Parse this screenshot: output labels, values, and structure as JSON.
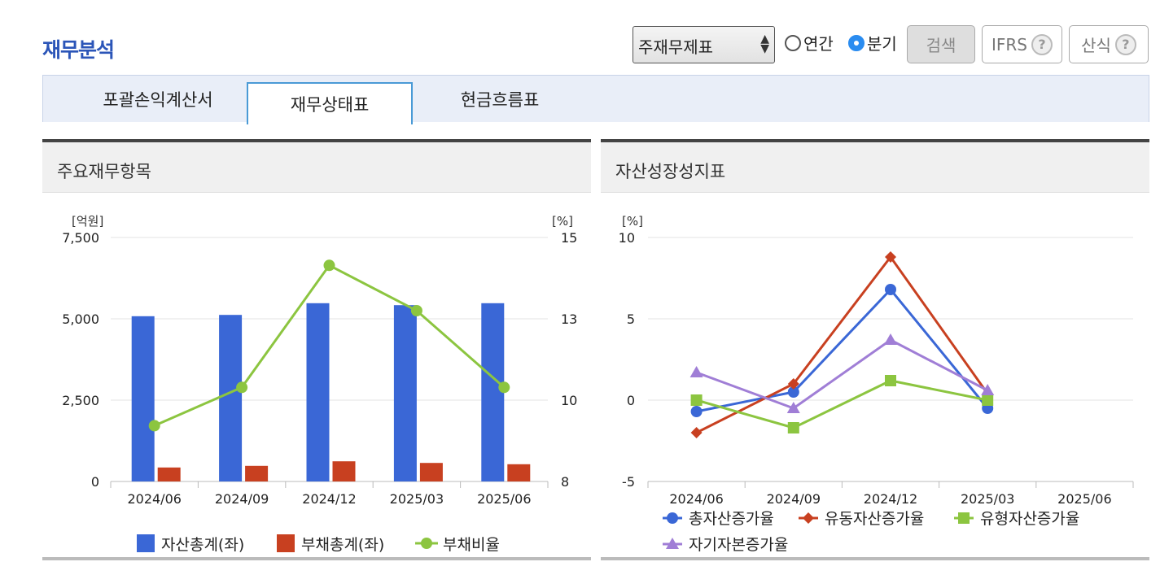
{
  "header": {
    "title": "재무분석",
    "select_value": "주재무제표",
    "radio_annual": "연간",
    "radio_quarter": "분기",
    "search_label": "검색",
    "ifrs_label": "IFRS",
    "formula_label": "산식",
    "help_glyph": "?"
  },
  "tabs": [
    "포괄손익계산서",
    "재무상태표",
    "현금흐름표"
  ],
  "left_panel": {
    "title": "주요재무항목"
  },
  "right_panel": {
    "title": "자산성장성지표"
  },
  "chart_data": [
    {
      "type": "bar",
      "categories": [
        "2024/06",
        "2024/09",
        "2024/12",
        "2025/03",
        "2025/06"
      ],
      "left_unit": "[억원]",
      "right_unit": "[%]",
      "ylim": [
        0,
        7500
      ],
      "y2lim": [
        8,
        15
      ],
      "y_ticks": [
        "0",
        "2,500",
        "5,000",
        "7,500"
      ],
      "y2_ticks": [
        "8",
        "10",
        "13",
        "15"
      ],
      "series": [
        {
          "name": "자산총계(좌)",
          "type": "bar",
          "axis": "left",
          "color": "#3a67d6",
          "values": [
            5080,
            5120,
            5480,
            5420,
            5480
          ]
        },
        {
          "name": "부채총계(좌)",
          "type": "bar",
          "axis": "left",
          "color": "#c84020",
          "values": [
            430,
            480,
            620,
            570,
            530
          ]
        },
        {
          "name": "부채비율",
          "type": "line",
          "axis": "right",
          "color": "#8cc540",
          "values": [
            9.6,
            10.7,
            14.2,
            12.9,
            10.7
          ]
        }
      ]
    },
    {
      "type": "line",
      "categories": [
        "2024/06",
        "2024/09",
        "2024/12",
        "2025/03",
        "2025/06"
      ],
      "unit": "[%]",
      "ylim": [
        -5,
        10
      ],
      "y_ticks": [
        "-5",
        "0",
        "5",
        "10"
      ],
      "series": [
        {
          "name": "총자산증가율",
          "marker": "circle",
          "color": "#3a67d6",
          "values": [
            -0.7,
            0.5,
            6.8,
            -0.5,
            null
          ]
        },
        {
          "name": "유동자산증가율",
          "marker": "diamond",
          "color": "#c84020",
          "values": [
            -2.0,
            1.0,
            8.8,
            0.4,
            null
          ]
        },
        {
          "name": "유형자산증가율",
          "marker": "square",
          "color": "#8cc540",
          "values": [
            0.0,
            -1.7,
            1.2,
            0.0,
            null
          ]
        },
        {
          "name": "자기자본증가율",
          "marker": "triangle",
          "color": "#a07ed6",
          "values": [
            1.7,
            -0.5,
            3.7,
            0.6,
            null
          ]
        }
      ]
    }
  ]
}
